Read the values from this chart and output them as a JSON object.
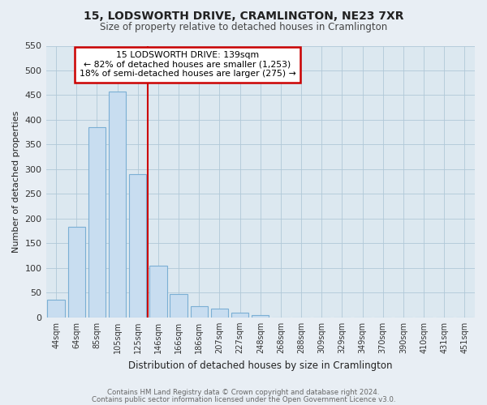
{
  "title": "15, LODSWORTH DRIVE, CRAMLINGTON, NE23 7XR",
  "subtitle": "Size of property relative to detached houses in Cramlington",
  "xlabel": "Distribution of detached houses by size in Cramlington",
  "ylabel": "Number of detached properties",
  "bar_labels": [
    "44sqm",
    "64sqm",
    "85sqm",
    "105sqm",
    "125sqm",
    "146sqm",
    "166sqm",
    "186sqm",
    "207sqm",
    "227sqm",
    "248sqm",
    "268sqm",
    "288sqm",
    "309sqm",
    "329sqm",
    "349sqm",
    "370sqm",
    "390sqm",
    "410sqm",
    "431sqm",
    "451sqm"
  ],
  "bar_values": [
    35,
    183,
    385,
    457,
    290,
    105,
    48,
    22,
    18,
    9,
    5,
    0,
    0,
    0,
    0,
    0,
    0,
    0,
    0,
    0,
    0
  ],
  "bar_color": "#c8ddf0",
  "bar_edge_color": "#7bafd4",
  "vline_color": "#cc0000",
  "vline_index": 4.5,
  "annotation_title": "15 LODSWORTH DRIVE: 139sqm",
  "annotation_line1": "← 82% of detached houses are smaller (1,253)",
  "annotation_line2": "18% of semi-detached houses are larger (275) →",
  "annotation_box_color": "#ffffff",
  "annotation_box_edge": "#cc0000",
  "ylim": [
    0,
    550
  ],
  "yticks": [
    0,
    50,
    100,
    150,
    200,
    250,
    300,
    350,
    400,
    450,
    500,
    550
  ],
  "footer1": "Contains HM Land Registry data © Crown copyright and database right 2024.",
  "footer2": "Contains public sector information licensed under the Open Government Licence v3.0.",
  "bg_color": "#e8eef4",
  "plot_bg_color": "#dce8f0",
  "grid_color": "#b0c8d8",
  "title_color": "#222222",
  "subtitle_color": "#444444",
  "footer_color": "#666666"
}
